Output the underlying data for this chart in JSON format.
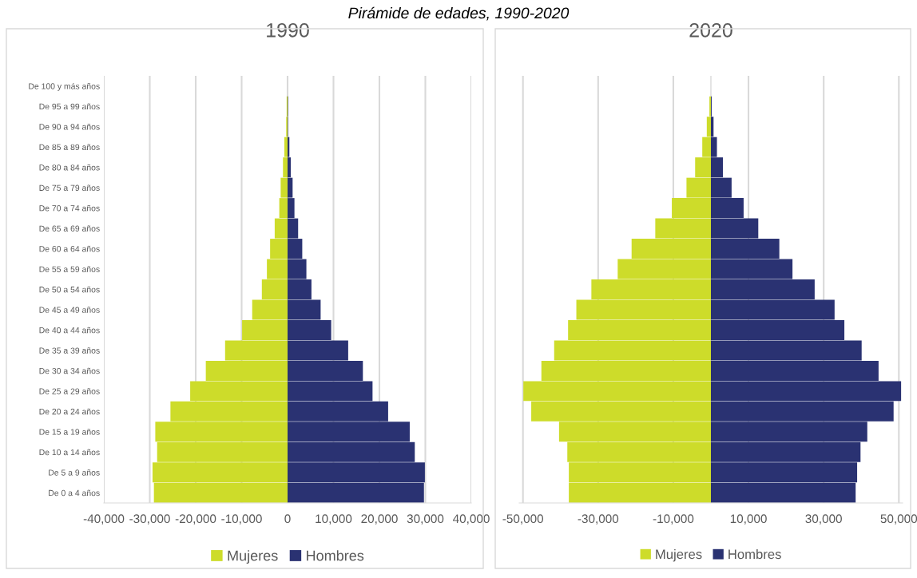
{
  "chart_data": [
    {
      "type": "bar",
      "orientation": "horizontal",
      "stacked": true,
      "title": "Pirámide de edades, 1990-2020",
      "subtitle": "1990",
      "categories": [
        "De 100 y más años",
        "De 95 a 99 años",
        "De 90 a 94 años",
        "De 85 a 89 años",
        "De 80 a 84 años",
        "De 75 a 79 años",
        "De 70 a 74 años",
        "De 65 a 69 años",
        "De 60 a 64 años",
        "De 55 a 59 años",
        "De 50 a 54 años",
        "De 45 a 49 años",
        "De 40 a 44 años",
        "De 35 a 39 años",
        "De 30 a 34 años",
        "De 25 a 29 años",
        "De 20 a 24 años",
        "De 15 a 19 años",
        "De 10 a 14 años",
        "De 5 a 9 años",
        "De 0 a 4 años"
      ],
      "series": [
        {
          "name": "Mujeres",
          "color": "#cddc2a",
          "values": [
            0,
            -200,
            -300,
            -700,
            -1000,
            -1500,
            -1800,
            -2800,
            -3800,
            -4500,
            -5600,
            -7700,
            -9900,
            -13600,
            -17800,
            -21200,
            -25500,
            -28800,
            -28400,
            -29400,
            -29100
          ]
        },
        {
          "name": "Hombres",
          "color": "#2a3272",
          "values": [
            0,
            100,
            100,
            400,
            700,
            1100,
            1500,
            2300,
            3200,
            4100,
            5200,
            7200,
            9500,
            13200,
            16400,
            18500,
            21900,
            26600,
            27700,
            29900,
            29700
          ]
        }
      ],
      "xlim": [
        -40000,
        40000
      ],
      "xticks": [
        {
          "value": -40000,
          "label": "-40,000"
        },
        {
          "value": -30000,
          "label": "-30,000"
        },
        {
          "value": -20000,
          "label": "-20,000"
        },
        {
          "value": -10000,
          "label": "-10,000"
        },
        0,
        {
          "value": 10000,
          "label": "10,000"
        },
        {
          "value": 20000,
          "label": "20,000"
        },
        {
          "value": 30000,
          "label": "30,000"
        },
        {
          "value": 40000,
          "label": "40,000"
        }
      ],
      "grid": "x",
      "legend": "bottom"
    },
    {
      "type": "bar",
      "orientation": "horizontal",
      "stacked": true,
      "subtitle": "2020",
      "categories": [
        null,
        null,
        null,
        null,
        null,
        null,
        null,
        null,
        null,
        null,
        null,
        null,
        null,
        null,
        null,
        null,
        null,
        null,
        null,
        null,
        null
      ],
      "series": [
        {
          "name": "Mujeres",
          "color": "#cddc2a",
          "values": [
            0,
            -400,
            -1100,
            -2300,
            -4200,
            -6500,
            -10400,
            -14800,
            -21100,
            -24800,
            -31800,
            -35800,
            -38000,
            -41700,
            -45100,
            -49900,
            -47800,
            -40400,
            -38200,
            -37800,
            -37800
          ]
        },
        {
          "name": "Hombres",
          "color": "#2a3272",
          "values": [
            0,
            200,
            700,
            1600,
            3200,
            5500,
            8700,
            12600,
            18200,
            21700,
            27600,
            32900,
            35500,
            40100,
            44600,
            50600,
            48600,
            41600,
            39800,
            38900,
            38500
          ]
        }
      ],
      "xlim": [
        -51000,
        51000
      ],
      "xticks": [
        {
          "value": -50000,
          "label": "-50,000"
        },
        {
          "value": -30000,
          "label": "-30,000"
        },
        {
          "value": -10000,
          "label": "-10,000"
        },
        {
          "value": 10000,
          "label": "10,000"
        },
        {
          "value": 30000,
          "label": "30,000"
        },
        {
          "value": 50000,
          "label": "50,000"
        }
      ],
      "grid": "x",
      "legend": "bottom"
    }
  ]
}
